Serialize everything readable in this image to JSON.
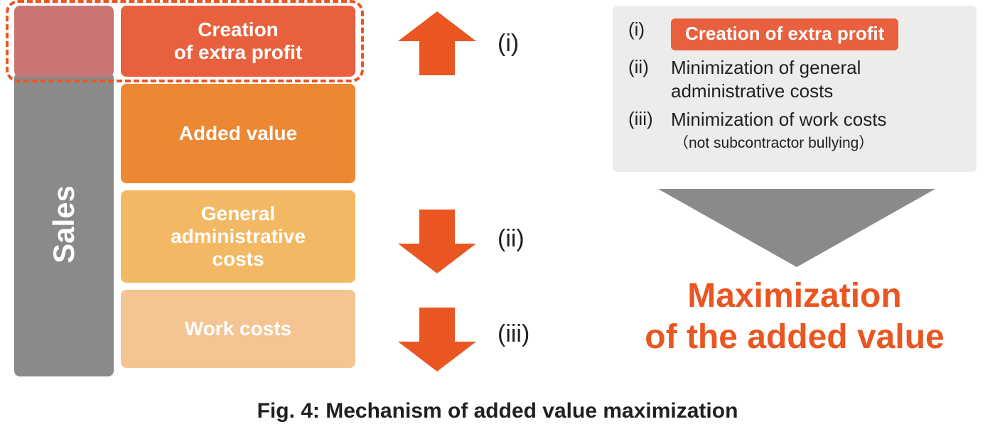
{
  "colors": {
    "sales_col": "#8a8a8a",
    "extra_profit": "#e8603e",
    "added_value": "#ec8734",
    "gen_admin": "#f3b864",
    "work_costs": "#f4c592",
    "arrow": "#e95621",
    "dashed": "#e95621",
    "legend_bg": "#ececec",
    "legend_pill": "#e8603e",
    "big_arrow": "#8a8a8a",
    "max_text": "#e95621",
    "extra_overlay": "#c87574",
    "text_dark": "#211f1f"
  },
  "blocks": {
    "sales": "Sales",
    "extra_profit": "Creation\nof extra profit",
    "added_value": "Added value",
    "gen_admin": "General\nadministrative\ncosts",
    "work_costs": "Work costs",
    "heights": {
      "extra_profit": 100,
      "added_value": 140,
      "gen_admin": 130,
      "work_costs": 110
    },
    "font_size": 28
  },
  "mid_labels": {
    "i": "(i)",
    "ii": "(ii)",
    "iii": "(iii)"
  },
  "legend": {
    "i_num": "(i)",
    "i_text": "Creation of extra profit",
    "ii_num": "(ii)",
    "ii_text": "Minimization of general administrative costs",
    "iii_num": "(iii)",
    "iii_text": "Minimization of work costs",
    "iii_sub": "（not subcontractor bullying）"
  },
  "max_text": "Maximization\nof the added value",
  "caption": "Fig. 4: Mechanism of added value maximization"
}
